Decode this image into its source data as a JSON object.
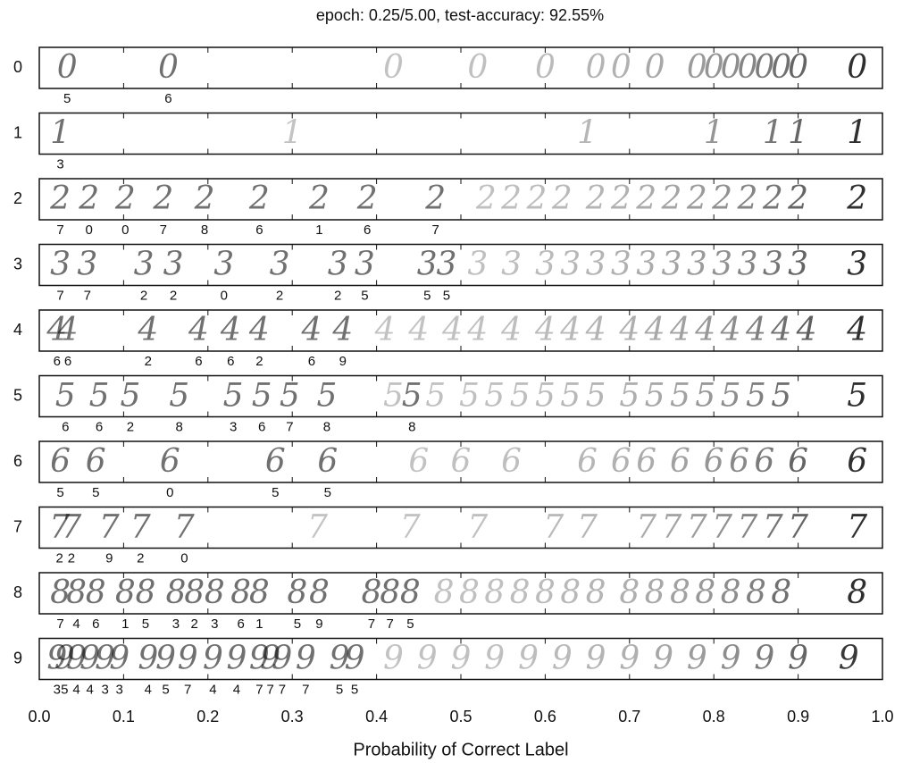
{
  "chart_data": {
    "type": "strip",
    "title": "epoch: 0.25/5.00, test-accuracy: 92.55%",
    "xlabel": "Probability of Correct Label",
    "xlim": [
      0,
      1
    ],
    "xticks": [
      {
        "value": 0,
        "label": "0.0"
      },
      {
        "value": 0.1,
        "label": "0.1"
      },
      {
        "value": 0.2,
        "label": "0.2"
      },
      {
        "value": 0.3,
        "label": "0.3"
      },
      {
        "value": 0.4,
        "label": "0.4"
      },
      {
        "value": 0.5,
        "label": "0.5"
      },
      {
        "value": 0.6,
        "label": "0.6"
      },
      {
        "value": 0.7,
        "label": "0.7"
      },
      {
        "value": 0.8,
        "label": "0.8"
      },
      {
        "value": 0.9,
        "label": "0.9"
      },
      {
        "value": 1,
        "label": "1.0"
      }
    ],
    "colors": {
      "misclassified": "#d98585",
      "correct": "#2f8f55"
    },
    "rows": [
      {
        "label": 0,
        "x": [
          0.033,
          0.153,
          0.42,
          0.52,
          0.6,
          0.66,
          0.69,
          0.73,
          0.78,
          0.8,
          0.82,
          0.84,
          0.86,
          0.88,
          0.9,
          0.97
        ],
        "predicted": [
          5,
          6,
          null,
          null,
          null,
          null,
          null,
          null,
          null,
          null,
          null,
          null,
          null,
          null,
          null,
          null
        ]
      },
      {
        "label": 1,
        "x": [
          0.025,
          0.3,
          0.65,
          0.8,
          0.87,
          0.9,
          0.97
        ],
        "predicted": [
          3,
          null,
          null,
          null,
          null,
          null,
          null
        ]
      },
      {
        "label": 2,
        "x": [
          0.025,
          0.059,
          0.102,
          0.147,
          0.196,
          0.261,
          0.332,
          0.389,
          0.47,
          0.53,
          0.56,
          0.59,
          0.62,
          0.66,
          0.69,
          0.72,
          0.75,
          0.78,
          0.81,
          0.84,
          0.87,
          0.9,
          0.97
        ],
        "predicted": [
          7,
          0,
          0,
          7,
          8,
          6,
          1,
          6,
          7,
          null,
          null,
          null,
          null,
          null,
          null,
          null,
          null,
          null,
          null,
          null,
          null,
          null,
          null
        ]
      },
      {
        "label": 3,
        "x": [
          0.025,
          0.057,
          0.124,
          0.159,
          0.219,
          0.285,
          0.354,
          0.386,
          0.46,
          0.483,
          0.52,
          0.56,
          0.6,
          0.63,
          0.66,
          0.69,
          0.72,
          0.75,
          0.78,
          0.81,
          0.84,
          0.87,
          0.9,
          0.97
        ],
        "predicted": [
          7,
          7,
          2,
          2,
          0,
          2,
          2,
          5,
          5,
          5,
          null,
          null,
          null,
          null,
          null,
          null,
          null,
          null,
          null,
          null,
          null,
          null,
          null,
          null
        ]
      },
      {
        "label": 4,
        "x": [
          0.021,
          0.034,
          0.129,
          0.189,
          0.227,
          0.261,
          0.323,
          0.36,
          0.41,
          0.45,
          0.49,
          0.52,
          0.56,
          0.6,
          0.63,
          0.66,
          0.7,
          0.73,
          0.76,
          0.79,
          0.82,
          0.85,
          0.88,
          0.91,
          0.97
        ],
        "predicted": [
          6,
          6,
          2,
          6,
          6,
          2,
          6,
          9,
          null,
          null,
          null,
          null,
          null,
          null,
          null,
          null,
          null,
          null,
          null,
          null,
          null,
          null,
          null,
          null,
          null
        ]
      },
      {
        "label": 5,
        "x": [
          0.031,
          0.071,
          0.108,
          0.166,
          0.23,
          0.264,
          0.297,
          0.341,
          0.442,
          0.42,
          0.47,
          0.51,
          0.54,
          0.57,
          0.6,
          0.63,
          0.66,
          0.7,
          0.73,
          0.76,
          0.79,
          0.82,
          0.85,
          0.88,
          0.97
        ],
        "predicted": [
          6,
          6,
          2,
          8,
          3,
          6,
          7,
          8,
          8,
          null,
          null,
          null,
          null,
          null,
          null,
          null,
          null,
          null,
          null,
          null,
          null,
          null,
          null,
          null,
          null
        ]
      },
      {
        "label": 6,
        "x": [
          0.025,
          0.067,
          0.155,
          0.28,
          0.342,
          0.45,
          0.5,
          0.56,
          0.65,
          0.69,
          0.72,
          0.76,
          0.8,
          0.83,
          0.86,
          0.9,
          0.97
        ],
        "predicted": [
          5,
          5,
          0,
          5,
          5,
          null,
          null,
          null,
          null,
          null,
          null,
          null,
          null,
          null,
          null,
          null,
          null
        ]
      },
      {
        "label": 7,
        "x": [
          0.024,
          0.038,
          0.083,
          0.12,
          0.172,
          0.33,
          0.44,
          0.52,
          0.61,
          0.65,
          0.72,
          0.75,
          0.78,
          0.81,
          0.84,
          0.87,
          0.9,
          0.97
        ],
        "predicted": [
          2,
          2,
          9,
          2,
          0,
          null,
          null,
          null,
          null,
          null,
          null,
          null,
          null,
          null,
          null,
          null,
          null,
          null
        ]
      },
      {
        "label": 8,
        "x": [
          0.025,
          0.044,
          0.067,
          0.102,
          0.126,
          0.162,
          0.184,
          0.208,
          0.239,
          0.261,
          0.306,
          0.332,
          0.394,
          0.416,
          0.44,
          0.48,
          0.51,
          0.54,
          0.57,
          0.6,
          0.63,
          0.66,
          0.7,
          0.73,
          0.76,
          0.79,
          0.82,
          0.85,
          0.88,
          0.97
        ],
        "predicted": [
          7,
          4,
          6,
          1,
          5,
          3,
          2,
          3,
          6,
          1,
          5,
          9,
          7,
          7,
          5,
          null,
          null,
          null,
          null,
          null,
          null,
          null,
          null,
          null,
          null,
          null,
          null,
          null,
          null,
          null
        ]
      },
      {
        "label": 9,
        "x": [
          0.021,
          0.03,
          0.044,
          0.06,
          0.078,
          0.095,
          0.129,
          0.15,
          0.176,
          0.206,
          0.234,
          0.261,
          0.274,
          0.288,
          0.316,
          0.356,
          0.374,
          0.42,
          0.46,
          0.5,
          0.54,
          0.58,
          0.62,
          0.66,
          0.7,
          0.74,
          0.78,
          0.82,
          0.86,
          0.9,
          0.96
        ],
        "predicted": [
          3,
          5,
          4,
          4,
          3,
          3,
          4,
          5,
          7,
          4,
          4,
          7,
          7,
          7,
          7,
          5,
          5,
          null,
          null,
          null,
          null,
          null,
          null,
          null,
          null,
          null,
          null,
          null,
          null,
          null,
          null
        ]
      }
    ]
  }
}
